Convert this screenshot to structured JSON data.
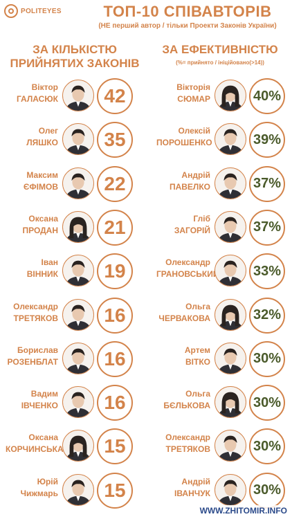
{
  "header": {
    "brand": "POLITEYES",
    "title": "ТОП-10 СПІВАВТОРІВ",
    "subtitle": "(НЕ перший автор / тільки Проекти Законів України)"
  },
  "left_column": {
    "title_line1": "ЗА КІЛЬКІСТЮ",
    "title_line2": "ПРИЙНЯТИХ ЗАКОНІВ",
    "items": [
      {
        "first": "Віктор",
        "last": "ГАЛАСЮК",
        "value": "42"
      },
      {
        "first": "Олег",
        "last": "ЛЯШКО",
        "value": "35"
      },
      {
        "first": "Максим",
        "last": "ЄФІМОВ",
        "value": "22"
      },
      {
        "first": "Оксана",
        "last": "ПРОДАН",
        "value": "21"
      },
      {
        "first": "Іван",
        "last": "ВІННИК",
        "value": "19"
      },
      {
        "first": "Олександр",
        "last": "ТРЕТЯКОВ",
        "value": "16"
      },
      {
        "first": "Борислав",
        "last": "РОЗЕНБЛАТ",
        "value": "16"
      },
      {
        "first": "Вадим",
        "last": "ІВЧЕНКО",
        "value": "16"
      },
      {
        "first": "Оксана",
        "last": "КОРЧИНСЬКА",
        "value": "15"
      },
      {
        "first": "Юрій",
        "last": "Чижмарь",
        "value": "15"
      }
    ]
  },
  "right_column": {
    "title": "ЗА ЕФЕКТИВНІСТЮ",
    "subtitle": "(%= прийнято / ініційовано(>14))",
    "items": [
      {
        "first": "Вікторія",
        "last": "СЮМАР",
        "value": "40%"
      },
      {
        "first": "Олексій",
        "last": "ПОРОШЕНКО",
        "value": "39%"
      },
      {
        "first": "Андрій",
        "last": "ПАВЕЛКО",
        "value": "37%"
      },
      {
        "first": "Гліб",
        "last": "ЗАГОРІЙ",
        "value": "37%"
      },
      {
        "first": "Олександр",
        "last": "ГРАНОВСЬКИЙ",
        "value": "33%"
      },
      {
        "first": "Ольга",
        "last": "ЧЕРВАКОВА",
        "value": "32%"
      },
      {
        "first": "Артем",
        "last": "ВІТКО",
        "value": "30%"
      },
      {
        "first": "Ольга",
        "last": "БЄЛЬКОВА",
        "value": "30%"
      },
      {
        "first": "Олександр",
        "last": "ТРЕТЯКОВ",
        "value": "30%"
      },
      {
        "first": "Андрій",
        "last": "ІВАНЧУК",
        "value": "30%"
      }
    ]
  },
  "watermark": "WWW.ZHITOMIR.INFO",
  "colors": {
    "accent": "#d3834a",
    "percent": "#4a5a2a",
    "watermark": "#2b4a8a"
  }
}
